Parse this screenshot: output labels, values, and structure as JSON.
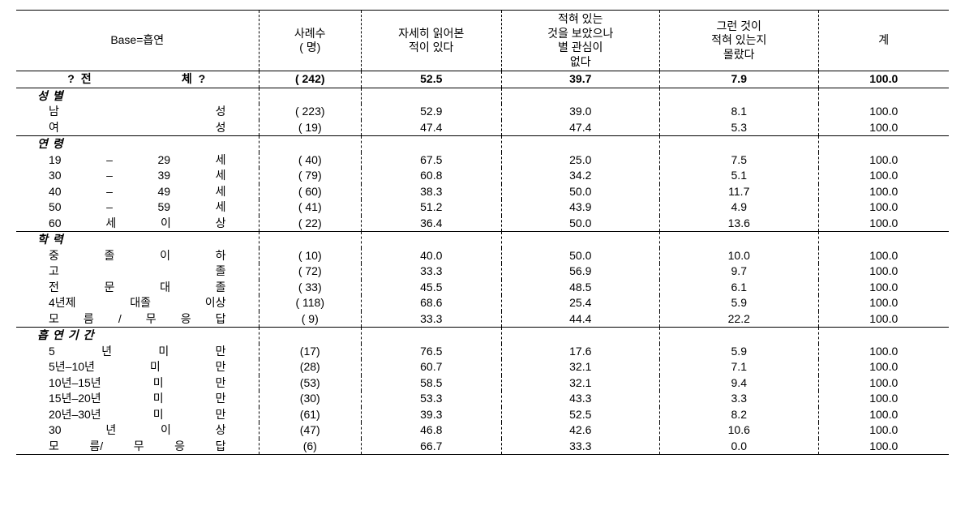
{
  "header": {
    "base_label": "Base=흡연",
    "col_n": "사례수\n( 명)",
    "col_v1": "자세히 읽어본\n적이 있다",
    "col_v2": "적혀 있는\n것을 보았으나\n별 관심이\n없다",
    "col_v3": "그런 것이\n적혀 있는지\n몰랐다",
    "col_v4": "계"
  },
  "total": {
    "label_left": "? 전",
    "label_right": "체 ?",
    "n": "( 242)",
    "v1": "52.5",
    "v2": "39.7",
    "v3": "7.9",
    "v4": "100.0"
  },
  "sections": [
    {
      "title": "성별",
      "rows": [
        {
          "parts": [
            "남",
            "성"
          ],
          "n": "( 223)",
          "v1": "52.9",
          "v2": "39.0",
          "v3": "8.1",
          "v4": "100.0"
        },
        {
          "parts": [
            "여",
            "성"
          ],
          "n": "( 19)",
          "v1": "47.4",
          "v2": "47.4",
          "v3": "5.3",
          "v4": "100.0"
        }
      ]
    },
    {
      "title": "연령",
      "rows": [
        {
          "parts": [
            "19",
            "–",
            "29",
            "세"
          ],
          "n": "( 40)",
          "v1": "67.5",
          "v2": "25.0",
          "v3": "7.5",
          "v4": "100.0"
        },
        {
          "parts": [
            "30",
            "–",
            "39",
            "세"
          ],
          "n": "( 79)",
          "v1": "60.8",
          "v2": "34.2",
          "v3": "5.1",
          "v4": "100.0"
        },
        {
          "parts": [
            "40",
            "–",
            "49",
            "세"
          ],
          "n": "( 60)",
          "v1": "38.3",
          "v2": "50.0",
          "v3": "11.7",
          "v4": "100.0"
        },
        {
          "parts": [
            "50",
            "–",
            "59",
            "세"
          ],
          "n": "( 41)",
          "v1": "51.2",
          "v2": "43.9",
          "v3": "4.9",
          "v4": "100.0"
        },
        {
          "parts": [
            "60",
            "세",
            "이",
            "상"
          ],
          "n": "( 22)",
          "v1": "36.4",
          "v2": "50.0",
          "v3": "13.6",
          "v4": "100.0"
        }
      ]
    },
    {
      "title": "학력",
      "rows": [
        {
          "parts": [
            "중",
            "졸",
            "이",
            "하"
          ],
          "n": "( 10)",
          "v1": "40.0",
          "v2": "50.0",
          "v3": "10.0",
          "v4": "100.0"
        },
        {
          "parts": [
            "고",
            "졸"
          ],
          "n": "( 72)",
          "v1": "33.3",
          "v2": "56.9",
          "v3": "9.7",
          "v4": "100.0"
        },
        {
          "parts": [
            "전",
            "문",
            "대",
            "졸"
          ],
          "n": "( 33)",
          "v1": "45.5",
          "v2": "48.5",
          "v3": "6.1",
          "v4": "100.0"
        },
        {
          "parts": [
            "4년제",
            "대졸",
            "이상"
          ],
          "n": "( 118)",
          "v1": "68.6",
          "v2": "25.4",
          "v3": "5.9",
          "v4": "100.0"
        },
        {
          "parts": [
            "모",
            "름",
            "/",
            "무",
            "응",
            "답"
          ],
          "n": "( 9)",
          "v1": "33.3",
          "v2": "44.4",
          "v3": "22.2",
          "v4": "100.0"
        }
      ]
    },
    {
      "title": "흡연기간",
      "rows": [
        {
          "parts": [
            "5",
            "년",
            "미",
            "만"
          ],
          "n": "(17)",
          "v1": "76.5",
          "v2": "17.6",
          "v3": "5.9",
          "v4": "100.0"
        },
        {
          "parts": [
            "5년–10년",
            "미",
            "만"
          ],
          "n": "(28)",
          "v1": "60.7",
          "v2": "32.1",
          "v3": "7.1",
          "v4": "100.0"
        },
        {
          "parts": [
            "10년–15년",
            "미",
            "만"
          ],
          "n": "(53)",
          "v1": "58.5",
          "v2": "32.1",
          "v3": "9.4",
          "v4": "100.0"
        },
        {
          "parts": [
            "15년–20년",
            "미",
            "만"
          ],
          "n": "(30)",
          "v1": "53.3",
          "v2": "43.3",
          "v3": "3.3",
          "v4": "100.0"
        },
        {
          "parts": [
            "20년–30년",
            "미",
            "만"
          ],
          "n": "(61)",
          "v1": "39.3",
          "v2": "52.5",
          "v3": "8.2",
          "v4": "100.0"
        },
        {
          "parts": [
            "30",
            "년",
            "이",
            "상"
          ],
          "n": "(47)",
          "v1": "46.8",
          "v2": "42.6",
          "v3": "10.6",
          "v4": "100.0"
        },
        {
          "parts": [
            "모",
            "름/",
            "무",
            "응",
            "답"
          ],
          "n": "(6)",
          "v1": "66.7",
          "v2": "33.3",
          "v3": "0.0",
          "v4": "100.0"
        }
      ]
    }
  ]
}
